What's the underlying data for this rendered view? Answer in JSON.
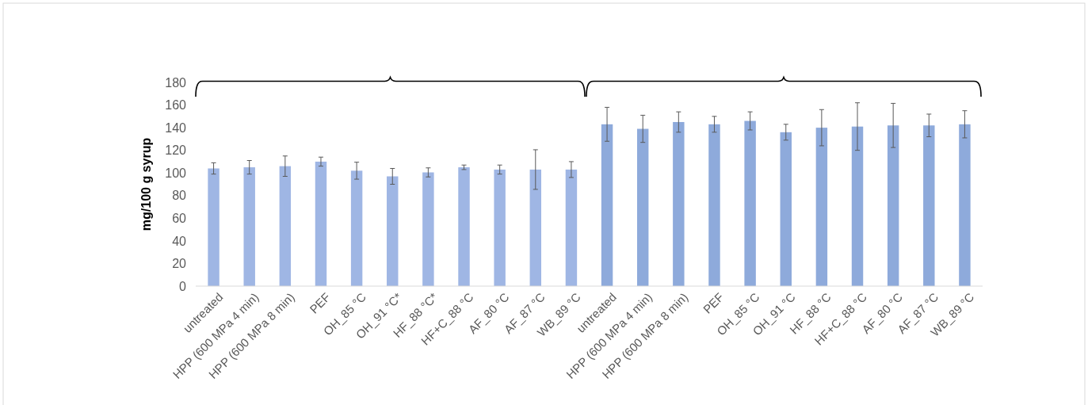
{
  "chart_data": {
    "type": "bar",
    "ylabel": "mg/100 g syrup",
    "categories": [
      "untreated",
      "HPP (600 MPa 4 min)",
      "HPP (600 MPa 8 min)",
      "PEF",
      "OH_85 °C",
      "OH_91 °C*",
      "HF_88 °C*",
      "HF+C_88 °C",
      "AF_80 °C",
      "AF_87 °C",
      "WB_89 °C",
      "untreated",
      "HPP (600 MPa 4 min)",
      "HPP (600 MPa 8 min)",
      "PEF",
      "OH_85 °C",
      "OH_91 °C",
      "HF_88 °C",
      "HF+C_88 °C",
      "AF_80 °C",
      "AF_87 °C",
      "WB_89 °C"
    ],
    "values": [
      104,
      105,
      106,
      110,
      102,
      97,
      100.5,
      105,
      103,
      103,
      103,
      143,
      139,
      145,
      143,
      146,
      136,
      140,
      141,
      142,
      142,
      143
    ],
    "errors": [
      5,
      6,
      9,
      4,
      7.5,
      7,
      4,
      2,
      4,
      17.5,
      7,
      15,
      12,
      9,
      7,
      8,
      7,
      16,
      21,
      19.5,
      10,
      12
    ],
    "colors": [
      "#9fb6e4",
      "#9fb6e4",
      "#9fb6e4",
      "#9fb6e4",
      "#9fb6e4",
      "#9fb6e4",
      "#9fb6e4",
      "#9fb6e4",
      "#9fb6e4",
      "#9fb6e4",
      "#9fb6e4",
      "#8eaadb",
      "#8eaadb",
      "#8eaadb",
      "#8eaadb",
      "#8eaadb",
      "#8eaadb",
      "#8eaadb",
      "#8eaadb",
      "#8eaadb",
      "#8eaadb",
      "#8eaadb"
    ],
    "ylim": [
      0,
      180
    ],
    "yticks": [
      0,
      20,
      40,
      60,
      80,
      100,
      120,
      140,
      160,
      180
    ],
    "grid": false
  }
}
